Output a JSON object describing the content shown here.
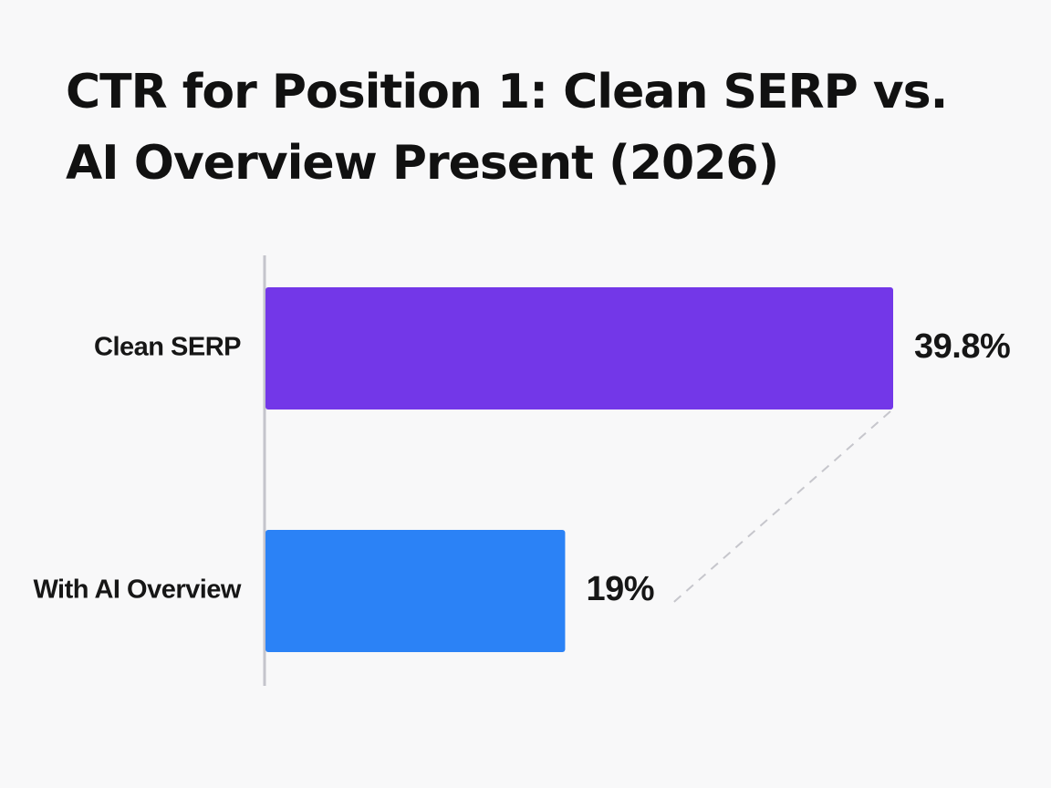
{
  "chart_data": {
    "type": "bar",
    "orientation": "horizontal",
    "title": "CTR for Position 1: Clean SERP vs. AI Overview Present (2026)",
    "categories": [
      "Clean SERP",
      "With AI Overview"
    ],
    "values": [
      39.8,
      19
    ],
    "value_labels": [
      "39.8%",
      "19%"
    ],
    "colors": [
      "#7337e8",
      "#2b82f6"
    ],
    "xlim": [
      0,
      39.8
    ],
    "xlabel": "",
    "ylabel": "",
    "grid": false,
    "connector": "dashed"
  }
}
